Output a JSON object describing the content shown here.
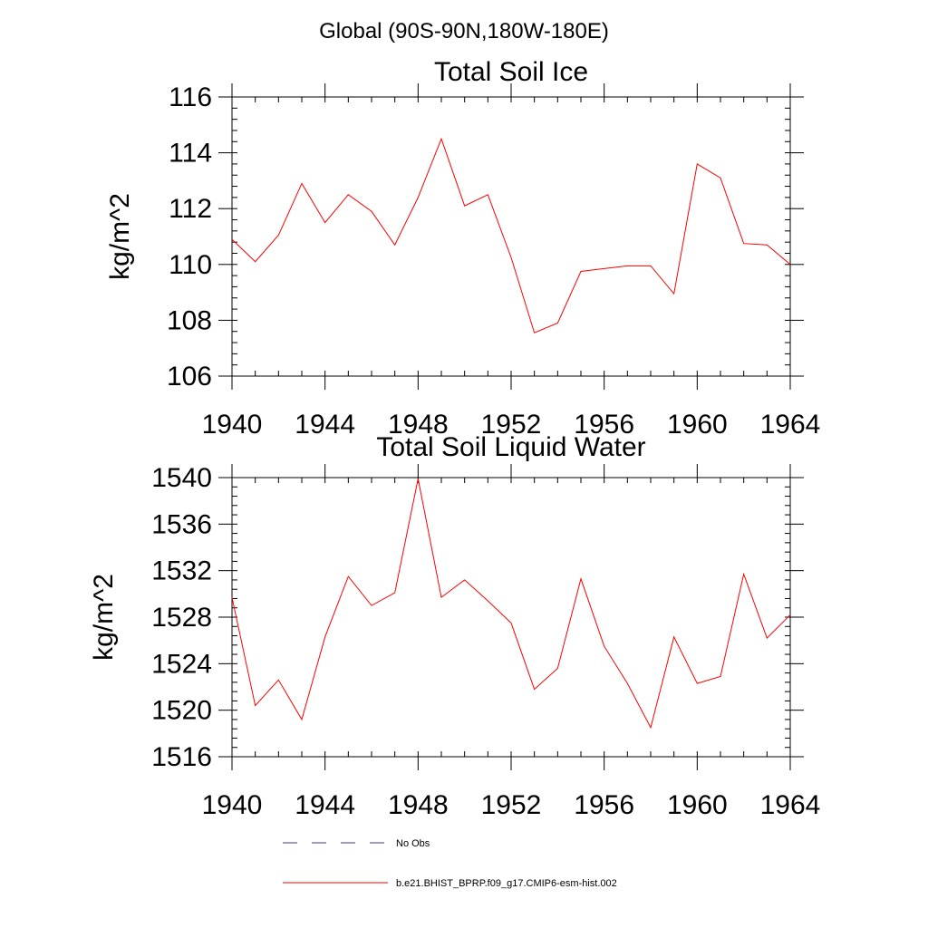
{
  "suptitle": "Global (90S-90N,180W-180E)",
  "chart_data": [
    {
      "type": "line",
      "title": "Total Soil Ice",
      "xlabel": "",
      "ylabel": "kg/m^2",
      "xlim": [
        1940,
        1964
      ],
      "ylim": [
        106,
        116
      ],
      "xticks": [
        1940,
        1944,
        1948,
        1952,
        1956,
        1960,
        1964
      ],
      "yticks": [
        106,
        108,
        110,
        112,
        114,
        116
      ],
      "grid": false,
      "series": [
        {
          "name": "b.e21.BHIST_BPRP.f09_g17.CMIP6-esm-hist.002",
          "color": "#ff0000",
          "x": [
            1940,
            1941,
            1942,
            1943,
            1944,
            1945,
            1946,
            1947,
            1948,
            1949,
            1950,
            1951,
            1952,
            1953,
            1954,
            1955,
            1956,
            1957,
            1958,
            1959,
            1960,
            1961,
            1962,
            1963,
            1964
          ],
          "y": [
            110.9,
            110.1,
            111.05,
            112.9,
            111.5,
            112.5,
            111.9,
            110.7,
            112.4,
            114.5,
            112.1,
            112.5,
            110.25,
            107.55,
            107.9,
            109.75,
            109.85,
            109.95,
            109.95,
            108.95,
            113.6,
            113.1,
            110.75,
            110.7,
            110.0
          ]
        }
      ]
    },
    {
      "type": "line",
      "title": "Total Soil Liquid Water",
      "xlabel": "",
      "ylabel": "kg/m^2",
      "xlim": [
        1940,
        1964
      ],
      "ylim": [
        1516,
        1540
      ],
      "xticks": [
        1940,
        1944,
        1948,
        1952,
        1956,
        1960,
        1964
      ],
      "yticks": [
        1516,
        1520,
        1524,
        1528,
        1532,
        1536,
        1540
      ],
      "grid": false,
      "series": [
        {
          "name": "b.e21.BHIST_BPRP.f09_g17.CMIP6-esm-hist.002",
          "color": "#ff0000",
          "x": [
            1940,
            1941,
            1942,
            1943,
            1944,
            1945,
            1946,
            1947,
            1948,
            1949,
            1950,
            1951,
            1952,
            1953,
            1954,
            1955,
            1956,
            1957,
            1958,
            1959,
            1960,
            1961,
            1962,
            1963,
            1964
          ],
          "y": [
            1529.7,
            1520.4,
            1522.6,
            1519.2,
            1526.3,
            1531.5,
            1529.0,
            1530.1,
            1539.9,
            1529.7,
            1531.2,
            1529.4,
            1527.5,
            1521.8,
            1523.6,
            1531.3,
            1525.5,
            1522.3,
            1518.5,
            1526.3,
            1522.3,
            1522.9,
            1531.7,
            1526.2,
            1528.2
          ]
        }
      ]
    }
  ],
  "legend": {
    "placement": "bottom",
    "items": [
      {
        "label": "No Obs",
        "color": "#3a3a8c",
        "style": "dashed"
      },
      {
        "label": "b.e21.BHIST_BPRP.f09_g17.CMIP6-esm-hist.002",
        "color": "#ff0000",
        "style": "solid"
      }
    ]
  }
}
